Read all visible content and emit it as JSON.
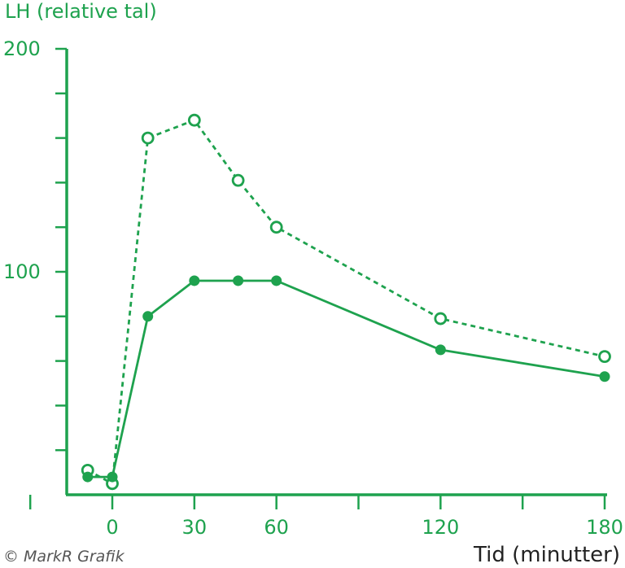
{
  "chart_data": {
    "type": "line",
    "ylabel": "LH (relative tal)",
    "xlabel": "Tid (minutter)",
    "credit": "© MarkR Grafik",
    "y_ticks": [
      "100",
      "200"
    ],
    "x_ticks": [
      "0",
      "30",
      "60",
      "120",
      "180"
    ],
    "xlim": [
      -20,
      182
    ],
    "ylim": [
      0,
      200
    ],
    "color": "#1ea24e",
    "series": [
      {
        "style": "dashed-open",
        "x": [
          -9,
          0,
          13,
          30,
          46,
          60,
          120,
          180
        ],
        "y": [
          11,
          5,
          160,
          168,
          141,
          120,
          79,
          62
        ]
      },
      {
        "style": "solid-filled",
        "x": [
          -9,
          0,
          13,
          30,
          46,
          60,
          120,
          180
        ],
        "y": [
          8,
          8,
          80,
          96,
          96,
          96,
          65,
          53
        ]
      }
    ]
  }
}
